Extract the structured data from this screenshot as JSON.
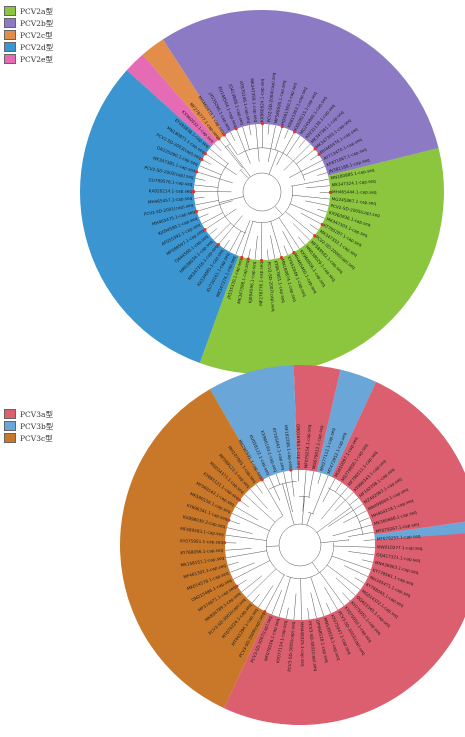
{
  "colors": {
    "PCV2a": "#8cc63f",
    "PCV2b": "#8c7bc4",
    "PCV2c": "#e38d4a",
    "PCV2d": "#3a95d1",
    "PCV2e": "#e56bb4",
    "PCV3a": "#db5f6e",
    "PCV3b": "#6aa6d8",
    "PCV3c": "#c9782a",
    "marker": "#e0312b",
    "branch": "#555555"
  },
  "legend_top": [
    {
      "key": "PCV2a",
      "label": "PCV2a型"
    },
    {
      "key": "PCV2b",
      "label": "PCV2b型"
    },
    {
      "key": "PCV2c",
      "label": "PCV2c型"
    },
    {
      "key": "PCV2d",
      "label": "PCV2d型"
    },
    {
      "key": "PCV2e",
      "label": "PCV2e型"
    }
  ],
  "legend_bottom": [
    {
      "key": "PCV3a",
      "label": "PCV3a型"
    },
    {
      "key": "PCV3b",
      "label": "PCV3b型"
    },
    {
      "key": "PCV3c",
      "label": "PCV3c型"
    }
  ],
  "tree_top": {
    "sectors": [
      {
        "key": "PCV2a",
        "from": 346,
        "to": 470
      },
      {
        "key": "PCV2b",
        "from": 237,
        "to": 346
      },
      {
        "key": "PCV2c",
        "from": 229,
        "to": 237
      },
      {
        "key": "PCV2e",
        "from": 222,
        "to": 229
      },
      {
        "key": "PCV2d",
        "from": 110,
        "to": 222
      }
    ],
    "labels": [
      "MK347374.1-cap.seq",
      "KU720161.1-cap.seq",
      "KX534085.1-cap.seq",
      "MK347316.1-cap.seq",
      "HM038034.1-cap.seq",
      "FJ644560.1-cap.seq",
      "MF589597.1-cap.seq",
      "AF055392.1-cap.seq",
      "KJ094599.1-cap.seq",
      "MH465475.1-cap.seq",
      "PCV2-SD-2001(cap).seq",
      "MH465457.1-cap.seq",
      "KX828214.1-cap.seq",
      "GU799576.1-cap.seq",
      "PCV2-SD-2002(cap).seq",
      "MK347385.1-cap.seq",
      "OR225090.1-cap.seq",
      "PCV2-SD-2003(cap).seq",
      "MN180871.1-cap.seq",
      "EF493838.1-cap.seq",
      "KX960932.1-cap.seq",
      "MF278777.1-cap.seq",
      "MH465478.1-cap.seq",
      "JX535296.1-cap.seq",
      "EU148504.1-cap.seq",
      "JQ413808.1-cap.seq",
      "KT870146.1-cap.seq",
      "MK347359.1-cap.seq",
      "KX960924.1-cap.seq",
      "PCV2-SD-2004(cap).seq",
      "MF589595.1-cap.seq",
      "HQ591360.1-cap.seq",
      "KR815303.1-cap.seq",
      "KX828215.1-cap.seq",
      "MG245860.1-cap.seq",
      "KP231138.1-cap.seq",
      "MK347361.1-cap.seq",
      "MK347393.1-cap.seq",
      "MH465476.1-cap.seq",
      "AY713470.1-cap.seq",
      "KF871067.1-cap.seq",
      "JN382188.1-cap.seq",
      "MN180885.1-cap.seq",
      "MK347324.1-cap.seq",
      "MH465444.1-cap.seq",
      "MG245867.1-cap.seq",
      "PCV2-SD-2005(cap).seq",
      "KX960936.1-cap.seq",
      "MK347303.1-cap.seq",
      "KT795287.1-cap.seq",
      "MK347332.1-cap.seq",
      "PCV2-SD-2006(cap).seq",
      "MF589592.1-cap.seq",
      "HM038029.1-cap.seq",
      "KX960926.1-cap.seq",
      "MH465460.1-cap.seq",
      "KY652049.1-cap.seq",
      "MN180874.1-cap.seq",
      "KT867801.1-cap.seq",
      "PCV2-SD-2007(cap).seq",
      "MF278776.1-cap.seq",
      "KJ094596.1-cap.seq",
      "MK347398.1-cap.seq",
      "JX535330.1-cap.seq"
    ],
    "markers": [
      3,
      9,
      12,
      17,
      22,
      28,
      33,
      38,
      44,
      49,
      55,
      60,
      63,
      67,
      70,
      73,
      76,
      79,
      82,
      85,
      88,
      95,
      101,
      108,
      115,
      121,
      126
    ]
  },
  "tree_bottom": {
    "sectors": [
      {
        "key": "PCV3a",
        "from": 355,
        "to": 475
      },
      {
        "key": "PCV3b",
        "from": 352,
        "to": 356
      },
      {
        "key": "PCV3a",
        "from": 295,
        "to": 352
      },
      {
        "key": "PCV3b",
        "from": 283,
        "to": 295
      },
      {
        "key": "PCV3a",
        "from": 268,
        "to": 283
      },
      {
        "key": "PCV3b",
        "from": 240,
        "to": 268
      },
      {
        "key": "PCV3c",
        "from": 115,
        "to": 240
      }
    ],
    "labels": [
      "PCV3-SD-3009(cap).seq",
      "MT461294.1-cap.seq",
      "MT076224.1-cap.seq",
      "PCV3-SD-3002(cap).seq",
      "MK834789.1-cap.seq",
      "MF374971.1-cap.seq",
      "OM215486.1-cap.seq",
      "MK014578.1-cap.seq",
      "MF461302.1-cap.seq",
      "MK158151.1-cap.seq",
      "KY768056.1-cap.seq",
      "KY075951.1-cap.seq",
      "MF589583.1-cap.seq",
      "KX898030.2-cap.seq",
      "KY996341.1-cap.seq",
      "MK580156.1-cap.seq",
      "MF569142.1-cap.seq",
      "KY865121.1-cap.seq",
      "MG014373.1-cap.seq",
      "MF589123.1-cap.seq",
      "MH107065.1-cap.seq",
      "MK290591.1-cap.seq",
      "KU058122.1-cap.seq",
      "KX966193.1-cap.seq",
      "KY165042.1-cap.seq",
      "MF162298.1-cap.seq",
      "OR016783.1-cap.seq",
      "MF079254.1-cap.seq",
      "MG679012.1-cap.seq",
      "MH277112.1-cap.seq",
      "MT473952.1-cap.seq",
      "MG610097.1-cap.seq",
      "MS779856.1-cap.seq",
      "MF796511.1-cap.seq",
      "KY996343.1-cap.seq",
      "MF162298.1-cap.seq",
      "MZ492063.1-cap.seq",
      "MN499604.1-cap.seq",
      "MH404218.1-cap.seq",
      "MK360668.1-cap.seq",
      "MF079267.1-cap.seq",
      "MF079253.1-cap.seq",
      "MW010277.1-cap.seq",
      "OQ417321.1-cap.seq",
      "MN436963.1-cap.seq",
      "KY778561.1-cap.seq",
      "MH345471.1-cap.seq",
      "KY768065.1-cap.seq",
      "MG014372.1-cap.seq",
      "OQ422345.1-cap.seq",
      "KY075952.1-cap.seq",
      "KY075950.1-cap.seq",
      "PCV3-SD-3003(cap).seq",
      "KY075947.1-cap.seq",
      "MN539529.1-cap.seq",
      "OP968528.1-cap.seq",
      "PCV3-SD-3001(cap).seq",
      "MH448325.1-cap.seq",
      "PCV3-SD-3005(cap).seq",
      "KY077114.1-cap.seq",
      "MF079256.1-cap.seq",
      "PCV3-SD-3007(cap).seq"
    ],
    "markers": [
      0,
      5,
      11,
      14,
      17,
      21,
      25
    ]
  }
}
